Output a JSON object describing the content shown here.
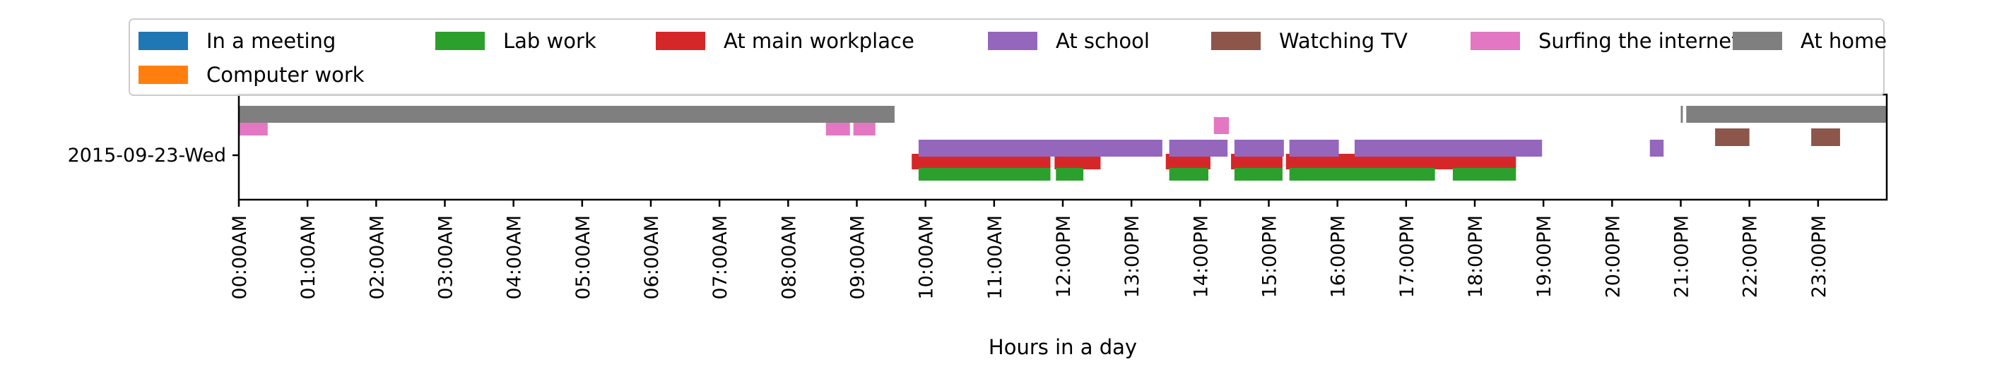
{
  "chart_data": {
    "type": "timeline",
    "xlabel": "Hours in a day",
    "xlim": [
      0,
      24
    ],
    "row_label": "2015-09-23-Wed",
    "x_ticks": [
      "00:00AM",
      "01:00AM",
      "02:00AM",
      "03:00AM",
      "04:00AM",
      "05:00AM",
      "06:00AM",
      "07:00AM",
      "08:00AM",
      "09:00AM",
      "10:00AM",
      "11:00AM",
      "12:00PM",
      "13:00PM",
      "14:00PM",
      "15:00PM",
      "16:00PM",
      "17:00PM",
      "18:00PM",
      "19:00PM",
      "20:00PM",
      "21:00PM",
      "22:00PM",
      "23:00PM"
    ],
    "legend_placement": "top",
    "series": [
      {
        "name": "In a meeting",
        "color": "#1f77b4",
        "intervals": []
      },
      {
        "name": "Computer work",
        "color": "#ff7f0e",
        "intervals": []
      },
      {
        "name": "Lab work",
        "color": "#2ca02c",
        "intervals": [
          [
            9.9,
            11.82
          ],
          [
            11.9,
            12.3
          ],
          [
            13.55,
            14.12
          ],
          [
            14.5,
            15.2
          ],
          [
            15.3,
            17.42
          ],
          [
            17.68,
            18.6
          ]
        ]
      },
      {
        "name": "At main workplace",
        "color": "#d62728",
        "intervals": [
          [
            9.8,
            11.82
          ],
          [
            11.88,
            12.55
          ],
          [
            13.5,
            14.15
          ],
          [
            14.45,
            15.2
          ],
          [
            15.25,
            18.6
          ]
        ]
      },
      {
        "name": "At school",
        "color": "#9467bd",
        "intervals": [
          [
            9.9,
            13.45
          ],
          [
            13.55,
            14.4
          ],
          [
            14.5,
            15.22
          ],
          [
            15.3,
            16.02
          ],
          [
            16.25,
            18.98
          ],
          [
            20.55,
            20.75
          ]
        ]
      },
      {
        "name": "Watching TV",
        "color": "#8c564b",
        "intervals": [
          [
            21.5,
            22.0
          ],
          [
            22.9,
            23.32
          ]
        ]
      },
      {
        "name": "Surfing the internet",
        "color": "#e377c2",
        "intervals": [
          [
            0.0,
            0.42
          ],
          [
            8.55,
            8.9
          ],
          [
            8.95,
            9.27
          ],
          [
            14.2,
            14.42
          ]
        ]
      },
      {
        "name": "At home",
        "color": "#7f7f7f",
        "intervals": [
          [
            0.0,
            9.55
          ],
          [
            21.0,
            21.03
          ],
          [
            21.08,
            24.0
          ]
        ]
      }
    ]
  }
}
